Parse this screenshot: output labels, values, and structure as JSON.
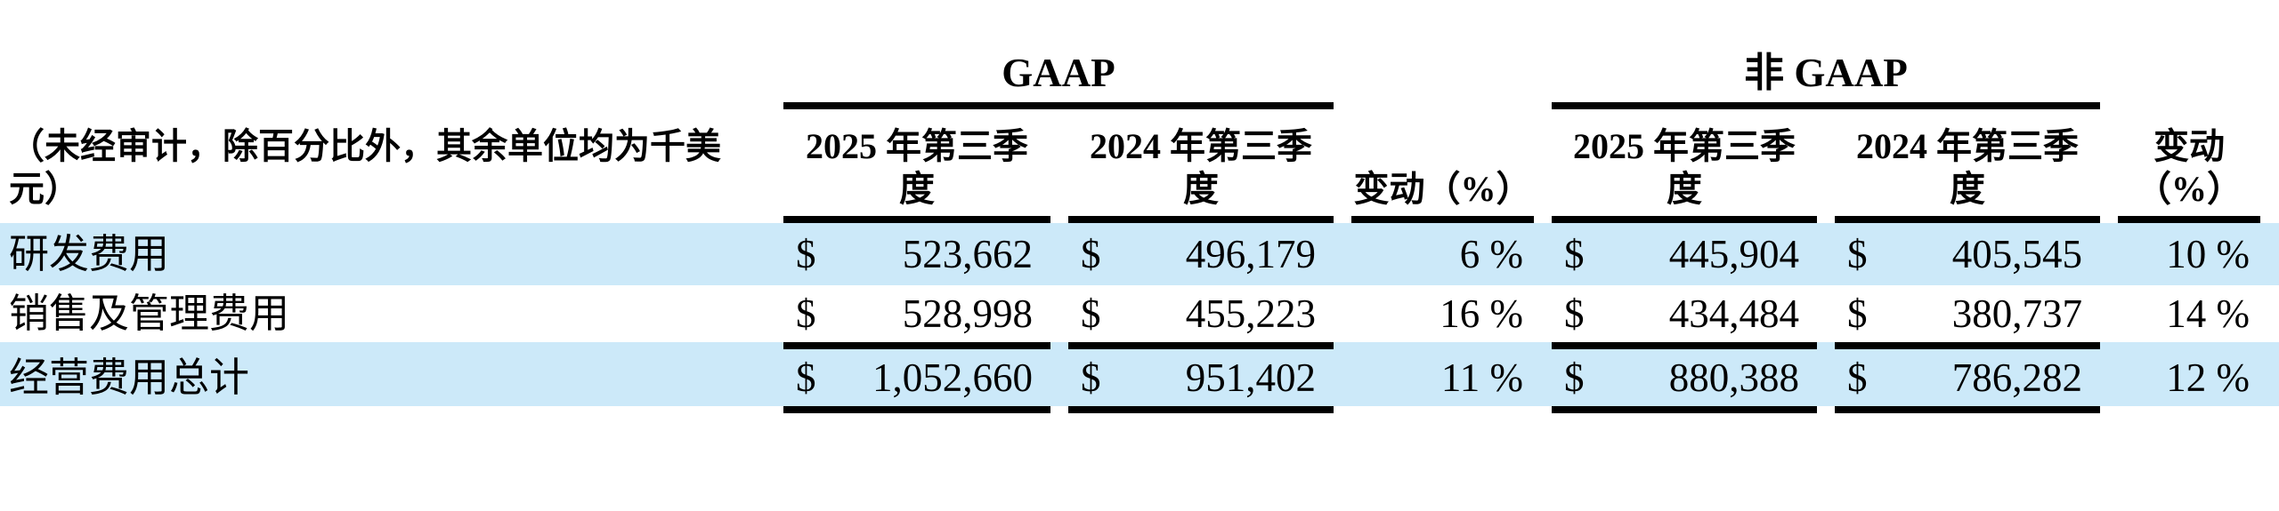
{
  "table": {
    "unit_note": {
      "line1": "（未经审计，除百分比外，其余单位均为千美",
      "line2": "元）"
    },
    "groups": {
      "gaap": "GAAP",
      "non_gaap": "非 GAAP"
    },
    "columns": {
      "q3_2025_line1": "2025 年第三季",
      "q3_2025_line2": "度",
      "q3_2024_line1": "2024 年第三季",
      "q3_2024_line2": "度",
      "change_single_line": "变动（%）",
      "change_line1": "变动",
      "change_line2": "（%）"
    },
    "currency_symbol": "$",
    "rows": [
      {
        "label": "研发费用",
        "gaap_2025": "523,662",
        "gaap_2024": "496,179",
        "gaap_change": "6 %",
        "non_gaap_2025": "445,904",
        "non_gaap_2024": "405,545",
        "non_gaap_change": "10 %"
      },
      {
        "label": "销售及管理费用",
        "gaap_2025": "528,998",
        "gaap_2024": "455,223",
        "gaap_change": "16 %",
        "non_gaap_2025": "434,484",
        "non_gaap_2024": "380,737",
        "non_gaap_change": "14 %"
      },
      {
        "label": "经营费用总计",
        "gaap_2025": "1,052,660",
        "gaap_2024": "951,402",
        "gaap_change": "11 %",
        "non_gaap_2025": "880,388",
        "non_gaap_2024": "786,282",
        "non_gaap_change": "12 %"
      }
    ],
    "colors": {
      "row_highlight": "#cce9f9",
      "rule": "#000000"
    }
  }
}
